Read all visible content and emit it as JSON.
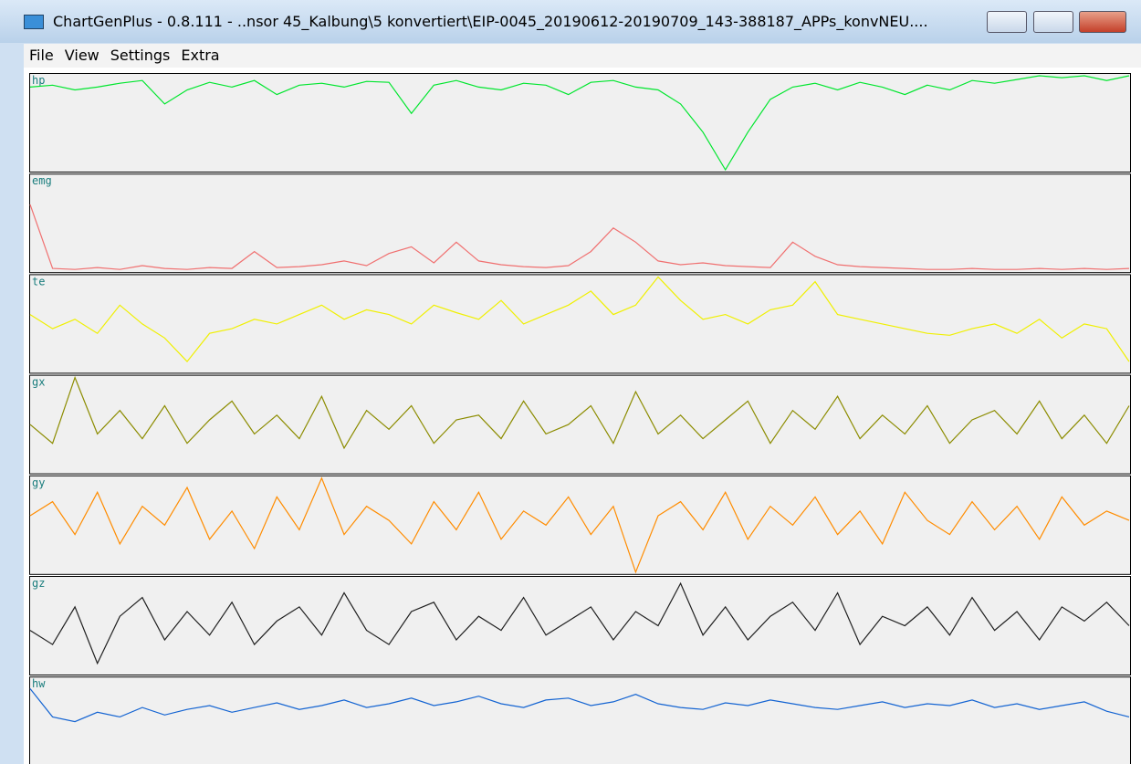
{
  "window": {
    "title": "ChartGenPlus - 0.8.111 - ..nsor 45_Kalbung\\5 konvertiert\\EIP-0045_20190612-20190709_143-388187_APPs_konvNEU....",
    "menu": [
      "File",
      "View",
      "Settings",
      "Extra"
    ]
  },
  "chart_data": [
    {
      "type": "line",
      "title": "hp",
      "color": "#00e62e",
      "ylim": [
        0,
        100
      ],
      "values": [
        88,
        90,
        85,
        88,
        92,
        95,
        70,
        85,
        93,
        88,
        95,
        80,
        90,
        92,
        88,
        94,
        93,
        60,
        90,
        95,
        88,
        85,
        92,
        90,
        80,
        93,
        95,
        88,
        85,
        70,
        40,
        0,
        40,
        75,
        88,
        92,
        85,
        93,
        88,
        80,
        90,
        85,
        95,
        92,
        96,
        100,
        98,
        100,
        95,
        100
      ]
    },
    {
      "type": "line",
      "title": "emg",
      "color": "#f07070",
      "ylim": [
        0,
        100
      ],
      "values": [
        70,
        2,
        1,
        3,
        1,
        5,
        2,
        1,
        3,
        2,
        20,
        3,
        4,
        6,
        10,
        5,
        18,
        25,
        8,
        30,
        10,
        6,
        4,
        3,
        5,
        20,
        45,
        30,
        10,
        6,
        8,
        5,
        4,
        3,
        30,
        15,
        6,
        4,
        3,
        2,
        1,
        1,
        2,
        1,
        1,
        2,
        1,
        2,
        1,
        2
      ]
    },
    {
      "type": "line",
      "title": "te",
      "color": "#f0f000",
      "ylim": [
        0,
        100
      ],
      "values": [
        60,
        45,
        55,
        40,
        70,
        50,
        35,
        10,
        40,
        45,
        55,
        50,
        60,
        70,
        55,
        65,
        60,
        50,
        70,
        62,
        55,
        75,
        50,
        60,
        70,
        85,
        60,
        70,
        100,
        75,
        55,
        60,
        50,
        65,
        70,
        95,
        60,
        55,
        50,
        45,
        40,
        38,
        45,
        50,
        40,
        55,
        35,
        50,
        45,
        10
      ]
    },
    {
      "type": "line",
      "title": "gx",
      "color": "#8c8c00",
      "ylim": [
        0,
        100
      ],
      "values": [
        50,
        30,
        100,
        40,
        65,
        35,
        70,
        30,
        55,
        75,
        40,
        60,
        35,
        80,
        25,
        65,
        45,
        70,
        30,
        55,
        60,
        35,
        75,
        40,
        50,
        70,
        30,
        85,
        40,
        60,
        35,
        55,
        75,
        30,
        65,
        45,
        80,
        35,
        60,
        40,
        70,
        30,
        55,
        65,
        40,
        75,
        35,
        60,
        30,
        70
      ]
    },
    {
      "type": "line",
      "title": "gy",
      "color": "#ff8c00",
      "ylim": [
        0,
        100
      ],
      "values": [
        60,
        75,
        40,
        85,
        30,
        70,
        50,
        90,
        35,
        65,
        25,
        80,
        45,
        100,
        40,
        70,
        55,
        30,
        75,
        45,
        85,
        35,
        65,
        50,
        80,
        40,
        70,
        0,
        60,
        75,
        45,
        85,
        35,
        70,
        50,
        80,
        40,
        65,
        30,
        85,
        55,
        40,
        75,
        45,
        70,
        35,
        80,
        50,
        65,
        55
      ]
    },
    {
      "type": "line",
      "title": "gz",
      "color": "#202020",
      "ylim": [
        0,
        100
      ],
      "values": [
        45,
        30,
        70,
        10,
        60,
        80,
        35,
        65,
        40,
        75,
        30,
        55,
        70,
        40,
        85,
        45,
        30,
        65,
        75,
        35,
        60,
        45,
        80,
        40,
        55,
        70,
        35,
        65,
        50,
        95,
        40,
        70,
        35,
        60,
        75,
        45,
        85,
        30,
        60,
        50,
        70,
        40,
        80,
        45,
        65,
        35,
        70,
        55,
        75,
        50
      ]
    },
    {
      "type": "line",
      "title": "hw",
      "color": "#1464d2",
      "ylim": [
        0,
        100
      ],
      "values": [
        90,
        60,
        55,
        65,
        60,
        70,
        62,
        68,
        72,
        65,
        70,
        75,
        68,
        72,
        78,
        70,
        74,
        80,
        72,
        76,
        82,
        74,
        70,
        78,
        80,
        72,
        76,
        84,
        74,
        70,
        68,
        75,
        72,
        78,
        74,
        70,
        68,
        72,
        76,
        70,
        74,
        72,
        78,
        70,
        74,
        68,
        72,
        76,
        66,
        60
      ]
    }
  ]
}
